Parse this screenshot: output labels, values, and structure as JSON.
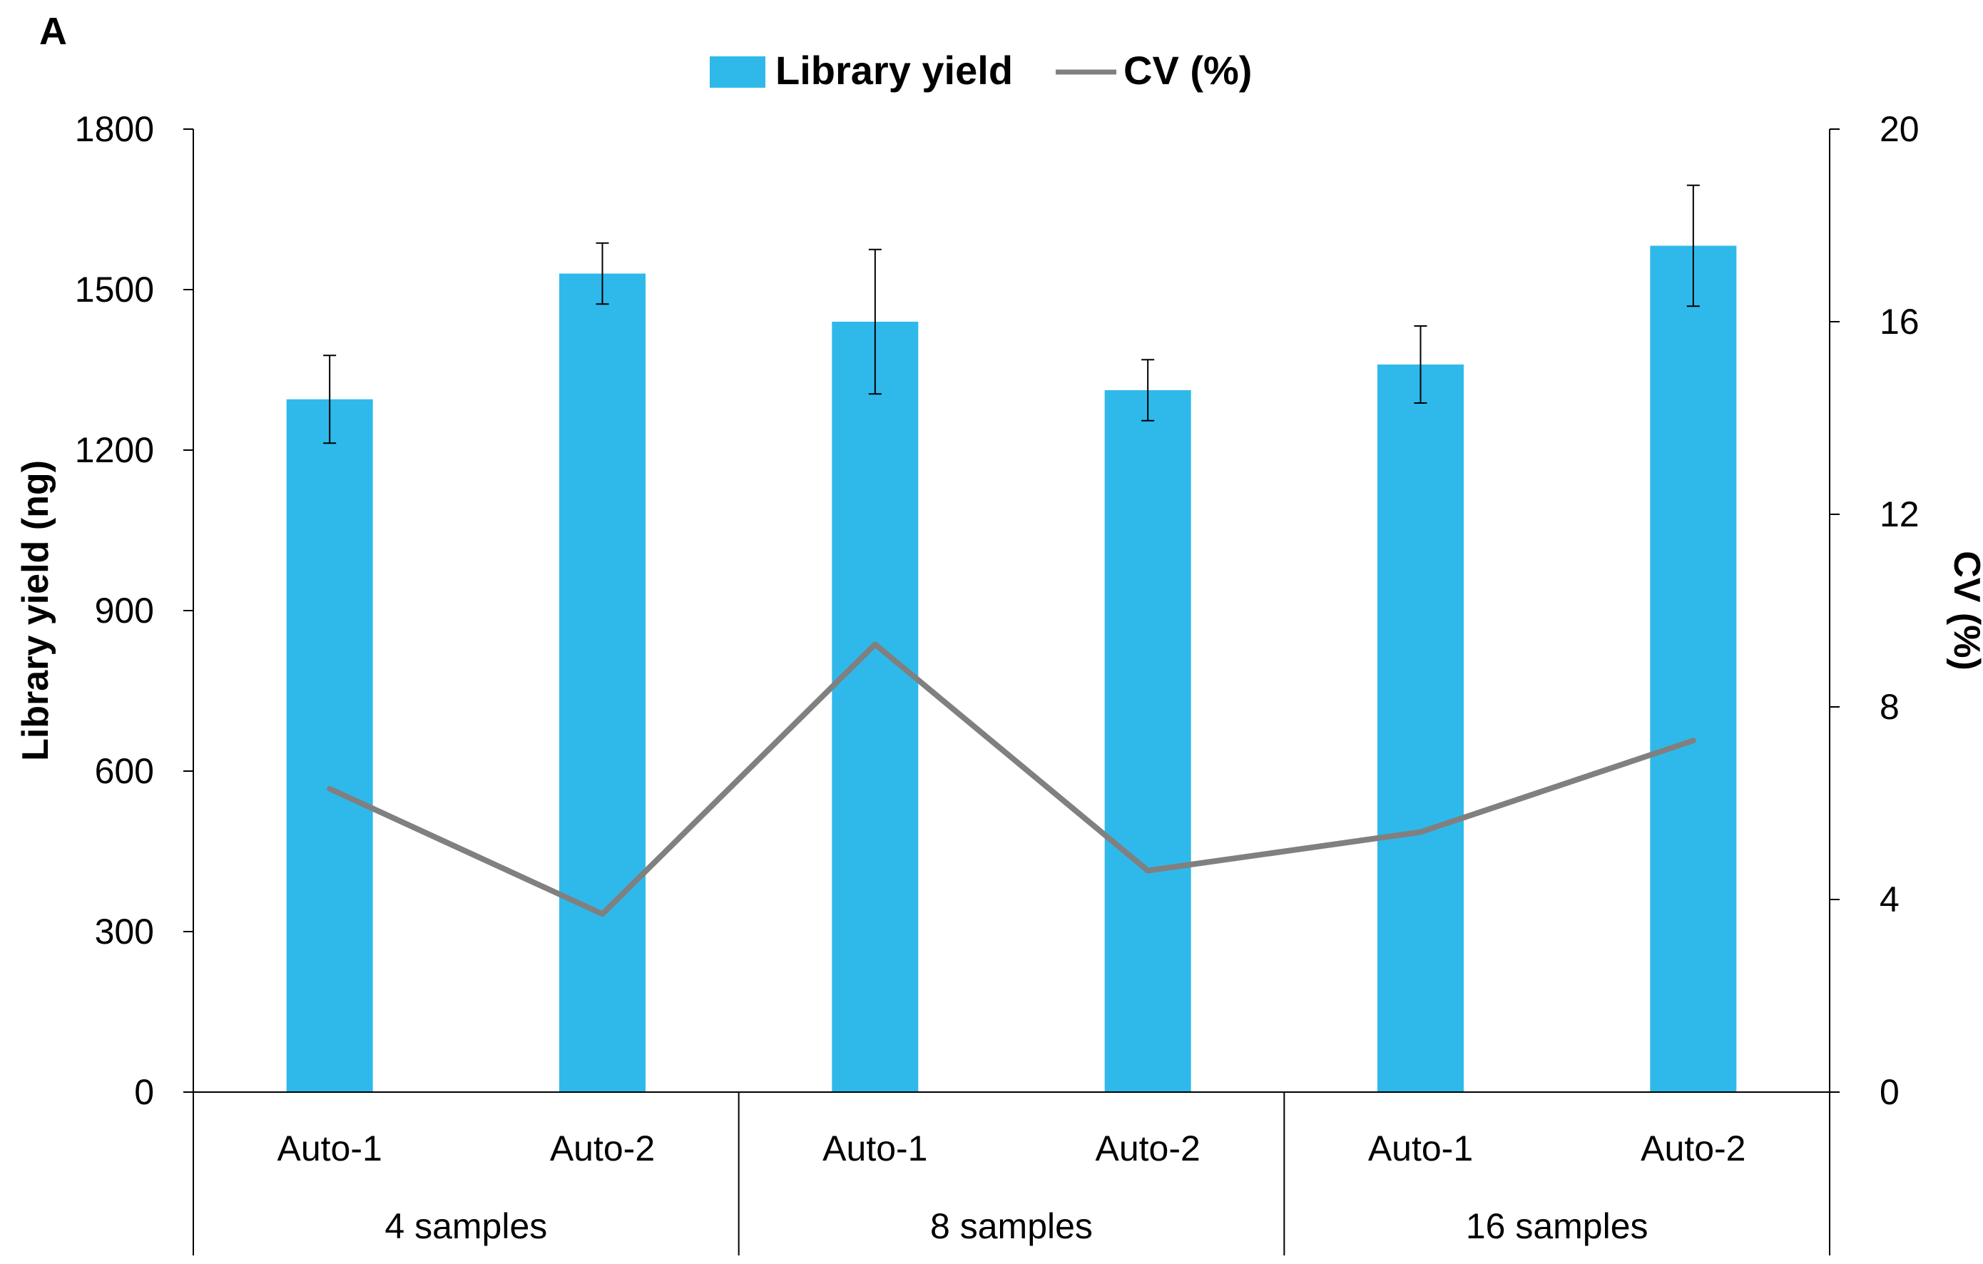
{
  "panel_label": "A",
  "chart_data": {
    "type": "bar",
    "categories": [
      "Auto-1",
      "Auto-2",
      "Auto-1",
      "Auto-2",
      "Auto-1",
      "Auto-2"
    ],
    "groups": [
      {
        "label": "4 samples",
        "count": 2
      },
      {
        "label": "8 samples",
        "count": 2
      },
      {
        "label": "16 samples",
        "count": 2
      }
    ],
    "series": [
      {
        "name": "Library yield",
        "kind": "bar",
        "axis": "left",
        "color": "#2fb9ea",
        "values": [
          1295,
          1530,
          1440,
          1312,
          1360,
          1582
        ],
        "errors": [
          82,
          57,
          135,
          57,
          72,
          113
        ]
      },
      {
        "name": "CV (%)",
        "kind": "line",
        "axis": "right",
        "color": "#808080",
        "values": [
          6.3,
          3.7,
          9.3,
          4.6,
          5.4,
          7.3
        ]
      }
    ],
    "ylabel": "Library yield (ng)",
    "y2label": "CV (%)",
    "ylim": [
      0,
      1800
    ],
    "yticks": [
      "0",
      "300",
      "600",
      "900",
      "1200",
      "1500",
      "1800"
    ],
    "y2lim": [
      0,
      20
    ],
    "y2ticks": [
      "0",
      "4",
      "8",
      "12",
      "16",
      "20"
    ],
    "legend_position": "top-center",
    "grid": false
  }
}
